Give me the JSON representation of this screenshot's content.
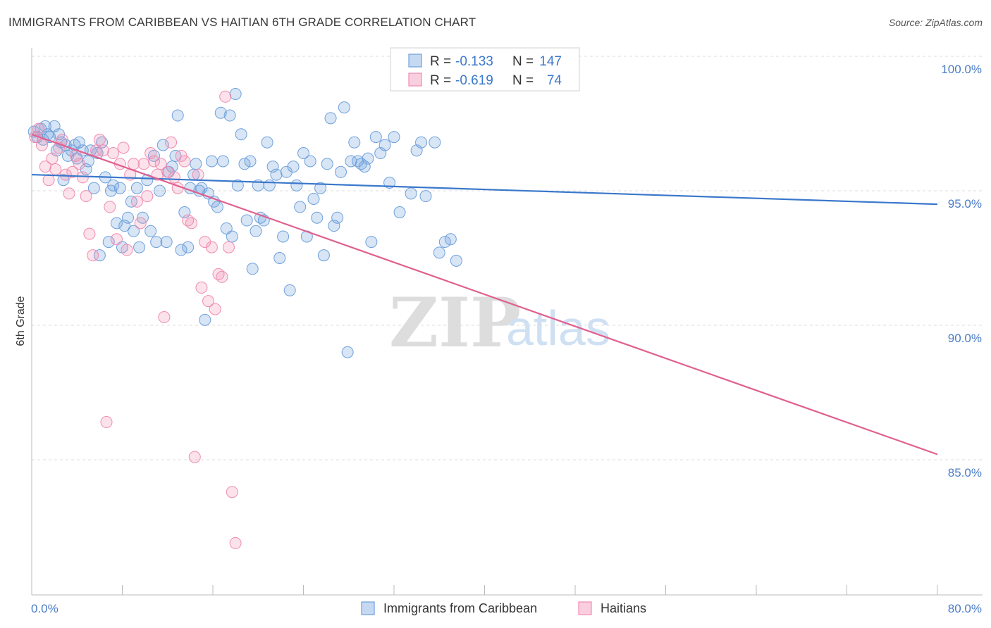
{
  "title": "IMMIGRANTS FROM CARIBBEAN VS HAITIAN 6TH GRADE CORRELATION CHART",
  "source": "Source: ZipAtlas.com",
  "watermark": {
    "zip": "ZIP",
    "atlas": "atlas"
  },
  "legend": {
    "rows": [
      {
        "r_label": "R =",
        "r_value": "-0.133",
        "n_label": "N =",
        "n_value": "147",
        "color": "#6fa0dc"
      },
      {
        "r_label": "R =",
        "r_value": "-0.619",
        "n_label": "N =",
        "n_value": "74",
        "color": "#f08cb0"
      }
    ]
  },
  "bottom_legend": [
    "Immigrants from Caribbean",
    "Haitians"
  ],
  "chart_data": {
    "type": "scatter",
    "xlabel": "",
    "ylabel": "6th Grade",
    "x_tick_labels": [
      "0.0%",
      "80.0%"
    ],
    "y_tick_labels": [
      "100.0%",
      "95.0%",
      "90.0%",
      "85.0%"
    ],
    "xlim": [
      0,
      80
    ],
    "ylim": [
      80.6,
      101.0
    ],
    "grid": true,
    "legend_placement": "top-center",
    "series": [
      {
        "name": "Immigrants from Caribbean",
        "color": "#6fa0dc",
        "line_color": "#3a78cc",
        "trend": {
          "x": [
            0,
            80
          ],
          "y": [
            95.6,
            94.5
          ]
        },
        "points": [
          [
            0.2,
            97.2
          ],
          [
            0.5,
            97.0
          ],
          [
            0.8,
            97.3
          ],
          [
            1.0,
            96.9
          ],
          [
            1.2,
            97.4
          ],
          [
            1.4,
            97.1
          ],
          [
            1.6,
            97.0
          ],
          [
            2.0,
            97.4
          ],
          [
            2.2,
            96.5
          ],
          [
            2.4,
            97.1
          ],
          [
            2.6,
            96.8
          ],
          [
            2.8,
            95.4
          ],
          [
            3.0,
            96.7
          ],
          [
            3.2,
            96.3
          ],
          [
            3.5,
            96.5
          ],
          [
            3.8,
            96.7
          ],
          [
            4.0,
            96.2
          ],
          [
            4.2,
            96.8
          ],
          [
            4.5,
            96.5
          ],
          [
            4.8,
            95.8
          ],
          [
            5.0,
            96.1
          ],
          [
            5.2,
            96.5
          ],
          [
            5.5,
            95.1
          ],
          [
            5.8,
            96.4
          ],
          [
            6.0,
            92.6
          ],
          [
            6.2,
            96.8
          ],
          [
            6.5,
            95.5
          ],
          [
            6.8,
            93.1
          ],
          [
            7.0,
            95.0
          ],
          [
            7.2,
            95.2
          ],
          [
            7.5,
            93.8
          ],
          [
            7.8,
            95.1
          ],
          [
            8.0,
            92.9
          ],
          [
            8.2,
            93.7
          ],
          [
            8.5,
            94.0
          ],
          [
            8.8,
            94.6
          ],
          [
            9.0,
            93.5
          ],
          [
            9.3,
            95.1
          ],
          [
            9.5,
            92.9
          ],
          [
            9.8,
            94.0
          ],
          [
            10.2,
            95.4
          ],
          [
            10.5,
            93.5
          ],
          [
            10.8,
            96.3
          ],
          [
            11.0,
            93.1
          ],
          [
            11.3,
            95.0
          ],
          [
            11.6,
            96.7
          ],
          [
            11.9,
            93.1
          ],
          [
            12.1,
            95.7
          ],
          [
            12.4,
            95.9
          ],
          [
            12.7,
            96.3
          ],
          [
            12.9,
            97.8
          ],
          [
            13.2,
            92.8
          ],
          [
            13.5,
            94.2
          ],
          [
            13.8,
            92.9
          ],
          [
            14.0,
            95.1
          ],
          [
            14.3,
            95.6
          ],
          [
            14.5,
            96.0
          ],
          [
            14.8,
            95.0
          ],
          [
            15.0,
            95.1
          ],
          [
            15.3,
            90.2
          ],
          [
            15.6,
            94.9
          ],
          [
            15.9,
            96.1
          ],
          [
            16.1,
            94.6
          ],
          [
            16.4,
            94.4
          ],
          [
            16.7,
            97.9
          ],
          [
            16.9,
            96.1
          ],
          [
            17.2,
            93.6
          ],
          [
            17.5,
            97.8
          ],
          [
            17.7,
            93.3
          ],
          [
            18.0,
            98.6
          ],
          [
            18.2,
            95.2
          ],
          [
            18.5,
            97.1
          ],
          [
            18.8,
            96.0
          ],
          [
            19.0,
            93.9
          ],
          [
            19.3,
            96.1
          ],
          [
            19.5,
            92.1
          ],
          [
            19.8,
            93.5
          ],
          [
            20.0,
            95.2
          ],
          [
            20.2,
            94.0
          ],
          [
            20.5,
            93.9
          ],
          [
            20.8,
            96.8
          ],
          [
            21.0,
            95.2
          ],
          [
            21.3,
            95.9
          ],
          [
            21.6,
            95.6
          ],
          [
            21.9,
            92.5
          ],
          [
            22.2,
            93.3
          ],
          [
            22.5,
            95.7
          ],
          [
            22.8,
            91.3
          ],
          [
            23.1,
            95.9
          ],
          [
            23.4,
            95.2
          ],
          [
            23.7,
            94.4
          ],
          [
            24.0,
            96.4
          ],
          [
            24.3,
            93.3
          ],
          [
            24.6,
            96.1
          ],
          [
            24.9,
            94.7
          ],
          [
            25.2,
            94.0
          ],
          [
            25.5,
            95.1
          ],
          [
            25.8,
            92.6
          ],
          [
            26.1,
            96.0
          ],
          [
            26.4,
            97.7
          ],
          [
            26.7,
            93.7
          ],
          [
            27.0,
            94.0
          ],
          [
            27.3,
            95.7
          ],
          [
            27.6,
            98.1
          ],
          [
            27.9,
            89.0
          ],
          [
            28.2,
            96.1
          ],
          [
            28.5,
            96.8
          ],
          [
            28.8,
            96.1
          ],
          [
            29.1,
            96.0
          ],
          [
            29.4,
            95.9
          ],
          [
            29.7,
            96.2
          ],
          [
            30.0,
            93.1
          ],
          [
            30.4,
            97.0
          ],
          [
            30.8,
            96.4
          ],
          [
            31.2,
            96.7
          ],
          [
            31.6,
            95.3
          ],
          [
            32.0,
            97.0
          ],
          [
            32.5,
            94.2
          ],
          [
            33.0,
            100.0
          ],
          [
            33.5,
            94.9
          ],
          [
            34.0,
            96.5
          ],
          [
            34.4,
            96.8
          ],
          [
            34.8,
            94.8
          ],
          [
            35.2,
            100.0
          ],
          [
            35.6,
            96.8
          ],
          [
            36.0,
            92.7
          ],
          [
            36.5,
            93.1
          ],
          [
            37.0,
            93.2
          ],
          [
            37.5,
            92.4
          ]
        ]
      },
      {
        "name": "Haitians",
        "color": "#f08cb0",
        "line_color": "#e0608f",
        "trend": {
          "x": [
            0,
            80
          ],
          "y": [
            97.1,
            85.2
          ]
        },
        "points": [
          [
            0.3,
            97.0
          ],
          [
            0.6,
            97.3
          ],
          [
            0.9,
            96.7
          ],
          [
            1.2,
            95.9
          ],
          [
            1.5,
            95.4
          ],
          [
            1.8,
            96.2
          ],
          [
            2.1,
            95.8
          ],
          [
            2.4,
            96.6
          ],
          [
            2.7,
            96.9
          ],
          [
            3.0,
            95.6
          ],
          [
            3.3,
            94.9
          ],
          [
            3.6,
            95.7
          ],
          [
            3.9,
            96.3
          ],
          [
            4.2,
            96.0
          ],
          [
            4.5,
            95.5
          ],
          [
            4.8,
            94.8
          ],
          [
            5.1,
            93.4
          ],
          [
            5.4,
            92.6
          ],
          [
            5.7,
            96.5
          ],
          [
            6.0,
            96.9
          ],
          [
            6.3,
            96.5
          ],
          [
            6.6,
            86.4
          ],
          [
            6.9,
            94.4
          ],
          [
            7.2,
            96.4
          ],
          [
            7.5,
            93.2
          ],
          [
            7.8,
            96.0
          ],
          [
            8.1,
            96.6
          ],
          [
            8.4,
            92.8
          ],
          [
            8.7,
            95.6
          ],
          [
            9.0,
            96.0
          ],
          [
            9.3,
            94.6
          ],
          [
            9.6,
            93.8
          ],
          [
            9.9,
            96.0
          ],
          [
            10.2,
            94.8
          ],
          [
            10.5,
            96.4
          ],
          [
            10.8,
            96.1
          ],
          [
            11.1,
            95.6
          ],
          [
            11.4,
            96.0
          ],
          [
            11.7,
            90.3
          ],
          [
            12.0,
            95.7
          ],
          [
            12.3,
            96.8
          ],
          [
            12.6,
            95.5
          ],
          [
            12.9,
            95.1
          ],
          [
            13.2,
            96.3
          ],
          [
            13.5,
            96.1
          ],
          [
            13.8,
            93.9
          ],
          [
            14.1,
            93.8
          ],
          [
            14.4,
            85.1
          ],
          [
            14.7,
            95.6
          ],
          [
            15.0,
            91.4
          ],
          [
            15.3,
            93.1
          ],
          [
            15.6,
            90.9
          ],
          [
            15.9,
            92.9
          ],
          [
            16.2,
            90.6
          ],
          [
            16.5,
            91.9
          ],
          [
            16.8,
            91.8
          ],
          [
            17.1,
            98.5
          ],
          [
            17.4,
            92.9
          ],
          [
            17.7,
            83.8
          ],
          [
            18.0,
            81.9
          ]
        ]
      }
    ]
  }
}
